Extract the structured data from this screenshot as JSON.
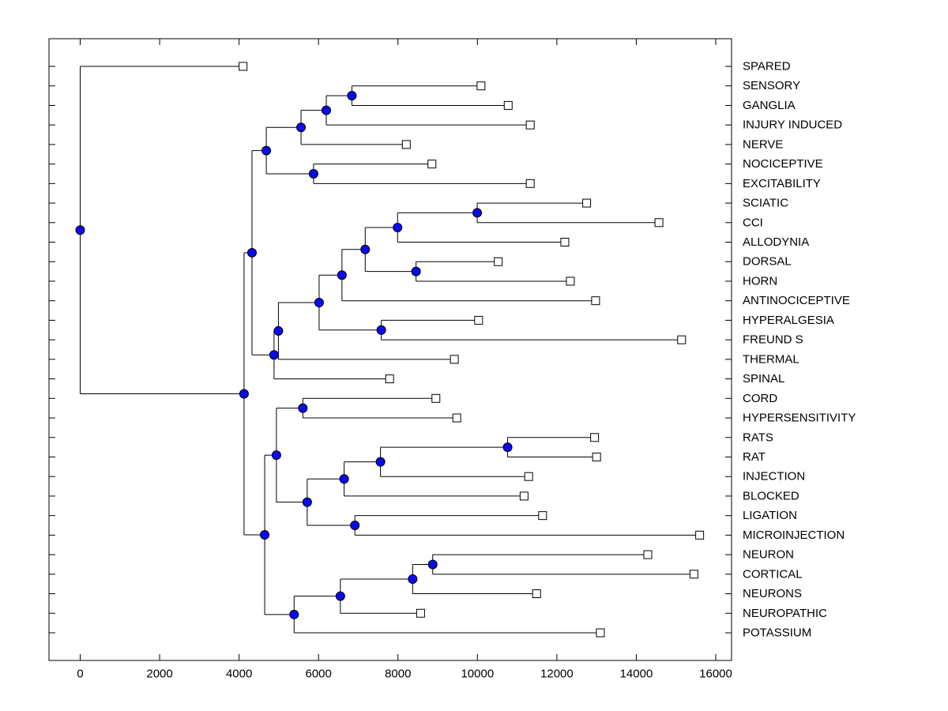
{
  "figure": {
    "background": "#ffffff"
  },
  "colors": {
    "line": "#000000",
    "branch_marker_fill": "#0a0af0",
    "branch_marker_edge": "#000000",
    "leaf_marker_fill": "#ffffff",
    "leaf_marker_edge": "#000000",
    "text": "#000000"
  },
  "chart_data": {
    "type": "dendrogram",
    "orientation": "horizontal, root at left, leaf labels on right",
    "title": "",
    "xlabel": "",
    "ylabel": "",
    "grid": false,
    "legend": null,
    "xlim": [
      -800,
      16400
    ],
    "x_ticks": [
      0,
      2000,
      4000,
      6000,
      8000,
      10000,
      12000,
      14000,
      16000
    ],
    "leaves": [
      {
        "label": "SPARED",
        "value": 4100
      },
      {
        "label": "SENSORY",
        "value": 10090
      },
      {
        "label": "GANGLIA",
        "value": 10775
      },
      {
        "label": "INJURY INDUCED",
        "value": 11330
      },
      {
        "label": "NERVE",
        "value": 8210
      },
      {
        "label": "NOCICEPTIVE",
        "value": 8855
      },
      {
        "label": "EXCITABILITY",
        "value": 11330
      },
      {
        "label": "SCIATIC",
        "value": 12750
      },
      {
        "label": "CCI",
        "value": 14570
      },
      {
        "label": "ALLODYNIA",
        "value": 12200
      },
      {
        "label": "DORSAL",
        "value": 10525
      },
      {
        "label": "HORN",
        "value": 12340
      },
      {
        "label": "ANTINOCICEPTIVE",
        "value": 12975
      },
      {
        "label": "HYPERALGESIA",
        "value": 10030
      },
      {
        "label": "FREUND S",
        "value": 15140
      },
      {
        "label": "THERMAL",
        "value": 9420
      },
      {
        "label": "SPINAL",
        "value": 7790
      },
      {
        "label": "CORD",
        "value": 8955
      },
      {
        "label": "HYPERSENSITIVITY",
        "value": 9480
      },
      {
        "label": "RATS",
        "value": 12950
      },
      {
        "label": "RAT",
        "value": 13000
      },
      {
        "label": "INJECTION",
        "value": 11290
      },
      {
        "label": "BLOCKED",
        "value": 11175
      },
      {
        "label": "LIGATION",
        "value": 11640
      },
      {
        "label": "MICROINJECTION",
        "value": 15595
      },
      {
        "label": "NEURON",
        "value": 14290
      },
      {
        "label": "CORTICAL",
        "value": 15450
      },
      {
        "label": "NEURONS",
        "value": 11490
      },
      {
        "label": "NEUROPATHIC",
        "value": 8570
      },
      {
        "label": "POTASSIUM",
        "value": 13095
      }
    ],
    "branches": [
      {
        "id": "b_sens_gang",
        "value": 6840,
        "children": [
          "L1",
          "L2"
        ]
      },
      {
        "id": "b_injury",
        "value": 6195,
        "children": [
          "b_sens_gang",
          "L3"
        ]
      },
      {
        "id": "b_nerve",
        "value": 5560,
        "children": [
          "b_injury",
          "L4"
        ]
      },
      {
        "id": "b_noci_excit",
        "value": 5875,
        "children": [
          "L5",
          "L6"
        ]
      },
      {
        "id": "b_top",
        "value": 4685,
        "children": [
          "b_nerve",
          "b_noci_excit"
        ]
      },
      {
        "id": "b_sciatic_cci",
        "value": 9995,
        "children": [
          "L7",
          "L8"
        ]
      },
      {
        "id": "b_allodynia",
        "value": 7990,
        "children": [
          "b_sciatic_cci",
          "L9"
        ]
      },
      {
        "id": "b_dorsal_horn",
        "value": 8455,
        "children": [
          "L10",
          "L11"
        ]
      },
      {
        "id": "b_mid_upper",
        "value": 7175,
        "children": [
          "b_allodynia",
          "b_dorsal_horn"
        ]
      },
      {
        "id": "b_antinoci",
        "value": 6590,
        "children": [
          "b_mid_upper",
          "L12"
        ]
      },
      {
        "id": "b_hyper_freund",
        "value": 7580,
        "children": [
          "L13",
          "L14"
        ]
      },
      {
        "id": "b_mid_core",
        "value": 6015,
        "children": [
          "b_antinoci",
          "b_hyper_freund"
        ]
      },
      {
        "id": "b_thermal",
        "value": 4990,
        "children": [
          "b_mid_core",
          "L15"
        ]
      },
      {
        "id": "b_spinal",
        "value": 4880,
        "children": [
          "b_thermal",
          "L16"
        ]
      },
      {
        "id": "b_upper_mid",
        "value": 4325,
        "children": [
          "b_top",
          "b_spinal"
        ]
      },
      {
        "id": "b_cord_hyper",
        "value": 5605,
        "children": [
          "L17",
          "L18"
        ]
      },
      {
        "id": "b_rats_rat",
        "value": 10760,
        "children": [
          "L19",
          "L20"
        ]
      },
      {
        "id": "b_injection",
        "value": 7560,
        "children": [
          "b_rats_rat",
          "L21"
        ]
      },
      {
        "id": "b_blocked",
        "value": 6645,
        "children": [
          "b_injection",
          "L22"
        ]
      },
      {
        "id": "b_lig_micro",
        "value": 6915,
        "children": [
          "L23",
          "L24"
        ]
      },
      {
        "id": "b_block_lig",
        "value": 5715,
        "children": [
          "b_blocked",
          "b_lig_micro"
        ]
      },
      {
        "id": "b_cord_grp",
        "value": 4940,
        "children": [
          "b_cord_hyper",
          "b_block_lig"
        ]
      },
      {
        "id": "b_neuron_cortical",
        "value": 8875,
        "children": [
          "L25",
          "L26"
        ]
      },
      {
        "id": "b_neurons",
        "value": 8370,
        "children": [
          "b_neuron_cortical",
          "L27"
        ]
      },
      {
        "id": "b_neuropathic",
        "value": 6550,
        "children": [
          "b_neurons",
          "L28"
        ]
      },
      {
        "id": "b_potassium",
        "value": 5385,
        "children": [
          "b_neuropathic",
          "L29"
        ]
      },
      {
        "id": "b_bottom",
        "value": 4645,
        "children": [
          "b_cord_grp",
          "b_potassium"
        ]
      },
      {
        "id": "b_lower",
        "value": 4125,
        "children": [
          "b_upper_mid",
          "b_bottom"
        ]
      },
      {
        "id": "root",
        "value": 0,
        "children": [
          "L0",
          "b_lower"
        ]
      }
    ]
  }
}
